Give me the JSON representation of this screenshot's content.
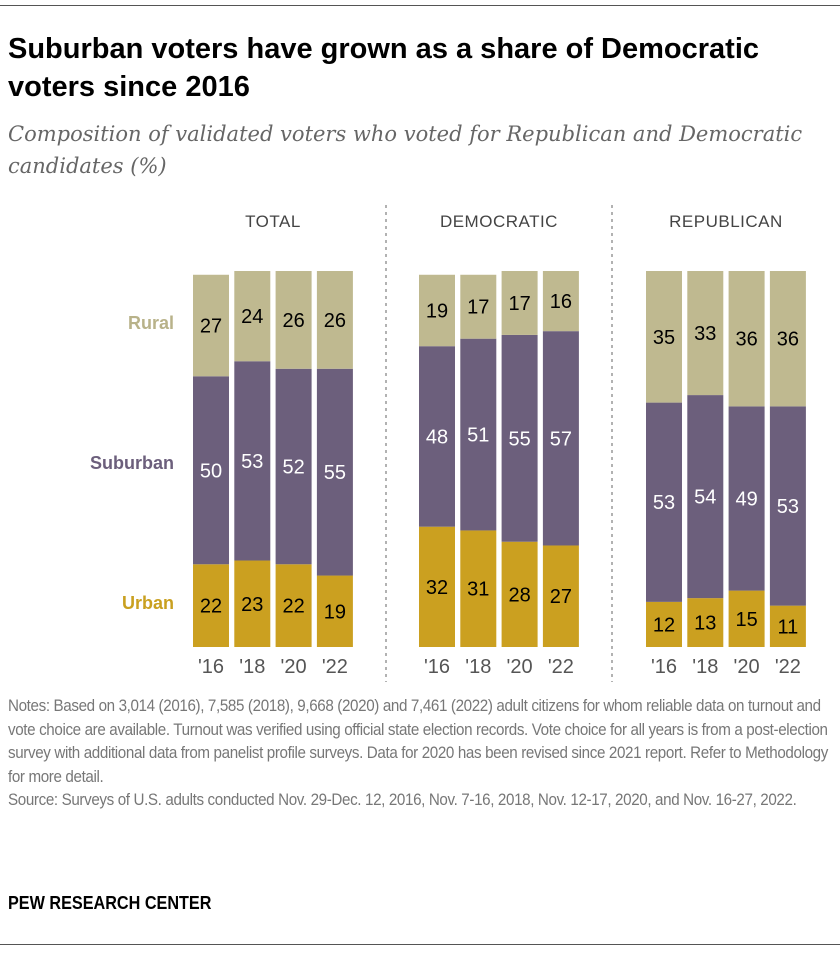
{
  "title": "Suburban voters have grown as a share of Democratic voters since 2016",
  "subtitle": "Composition of validated voters who voted for Republican and Democratic candidates (%)",
  "notes": "Notes: Based on 3,014 (2016), 7,585 (2018), 9,668 (2020) and 7,461 (2022) adult citizens for whom reliable data on turnout and vote choice are available. Turnout was verified using official state election records. Vote choice for all years is from a post-election survey with additional data from panelist profile surveys. Data for 2020 has been revised since 2021 report. Refer to Methodology for more detail.",
  "source": "Source: Surveys of U.S. adults conducted Nov. 29-Dec. 12, 2016, Nov. 7-16, 2018, Nov. 12-17, 2020, and Nov. 16-27, 2022.",
  "brand": "PEW RESEARCH CENTER",
  "chart_data": {
    "type": "bar",
    "stacked": true,
    "unit": "%",
    "categories": [
      "'16",
      "'18",
      "'20",
      "'22"
    ],
    "series_colors": {
      "Urban": "#CBA020",
      "Suburban": "#6C5F7C",
      "Rural": "#BFB990"
    },
    "series_label_colors": {
      "Urban": "#C9A020",
      "Suburban": "#6C5F7C",
      "Rural": "#B8B289"
    },
    "series_order": [
      "Urban",
      "Suburban",
      "Rural"
    ],
    "panels": [
      {
        "name": "TOTAL",
        "series": {
          "Urban": [
            22,
            23,
            22,
            19
          ],
          "Suburban": [
            50,
            53,
            52,
            55
          ],
          "Rural": [
            27,
            24,
            26,
            26
          ]
        }
      },
      {
        "name": "DEMOCRATIC",
        "series": {
          "Urban": [
            32,
            31,
            28,
            27
          ],
          "Suburban": [
            48,
            51,
            55,
            57
          ],
          "Rural": [
            19,
            17,
            17,
            16
          ]
        }
      },
      {
        "name": "REPUBLICAN",
        "series": {
          "Urban": [
            12,
            13,
            15,
            11
          ],
          "Suburban": [
            53,
            54,
            49,
            53
          ],
          "Rural": [
            35,
            33,
            36,
            36
          ]
        }
      }
    ]
  }
}
